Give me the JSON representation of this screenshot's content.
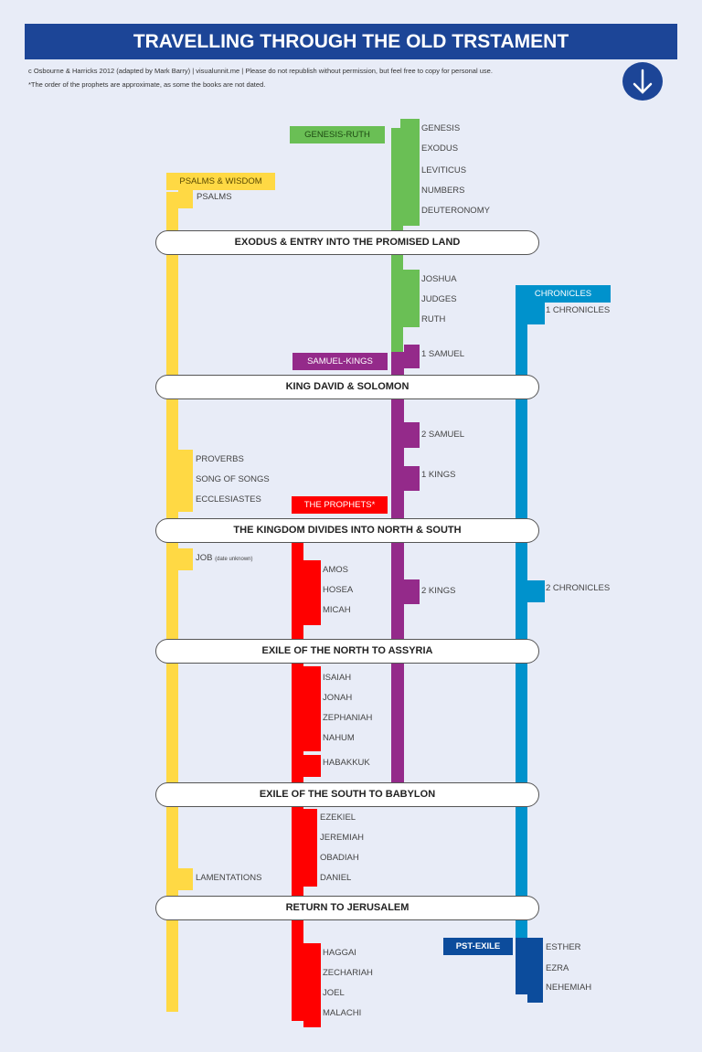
{
  "header": {
    "title": "TRAVELLING THROUGH THE OLD TRSTAMENT",
    "credit": "c Osbourne & Harricks 2012 (adapted by Mark Barry) | visualunnit.me  | Please do not republish without permission, but feel free to copy for personal use.",
    "note": "*The order of the prophets are approximate, as some the books are not dated.",
    "scroll_icon": "arrow-down-circle"
  },
  "colors": {
    "wisdom": "#ffd944",
    "genesis_ruth": "#6abf55",
    "samuel_kings": "#942a8a",
    "prophets": "#ff0000",
    "chronicles": "#0092cc",
    "post_exile": "#0c4c9c",
    "title": "#1c4597"
  },
  "groups": {
    "genesis_ruth": "GENESIS-RUTH",
    "psalms_wisdom": "PSALMS & WISDOM",
    "chronicles": "CHRONICLES",
    "samuel_kings": "SAMUEL-KINGS",
    "prophets": "THE PROPHETS*",
    "post_exile": "PST-EXILE"
  },
  "eras": [
    "EXODUS & ENTRY INTO THE PROMISED LAND",
    "KING DAVID & SOLOMON",
    "THE KINGDOM DIVIDES INTO NORTH & SOUTH",
    "EXILE OF THE NORTH TO ASSYRIA",
    "EXILE OF THE SOUTH TO BABYLON",
    "RETURN TO JERUSALEM"
  ],
  "books": {
    "genesis_ruth": [
      "GENESIS",
      "EXODUS",
      "LEVITICUS",
      "NUMBERS",
      "DEUTERONOMY",
      "JOSHUA",
      "JUDGES",
      "RUTH"
    ],
    "samuel_kings": [
      "1 SAMUEL",
      "2 SAMUEL",
      "1 KINGS",
      "2 KINGS"
    ],
    "wisdom": [
      "PSALMS",
      "PROVERBS",
      "SONG OF SONGS",
      "ECCLESIASTES",
      "JOB",
      "LAMENTATIONS"
    ],
    "job_note": "(date unknown)",
    "chronicles": [
      "1 CHRONICLES",
      "2 CHRONICLES"
    ],
    "prophets": [
      "AMOS",
      "HOSEA",
      "MICAH",
      "ISAIAH",
      "JONAH",
      "ZEPHANIAH",
      "NAHUM",
      "HABAKKUK",
      "EZEKIEL",
      "JEREMIAH",
      "OBADIAH",
      "DANIEL",
      "HAGGAI",
      "ZECHARIAH",
      "JOEL",
      "MALACHI"
    ],
    "post_exile": [
      "ESTHER",
      "EZRA",
      "NEHEMIAH"
    ]
  }
}
